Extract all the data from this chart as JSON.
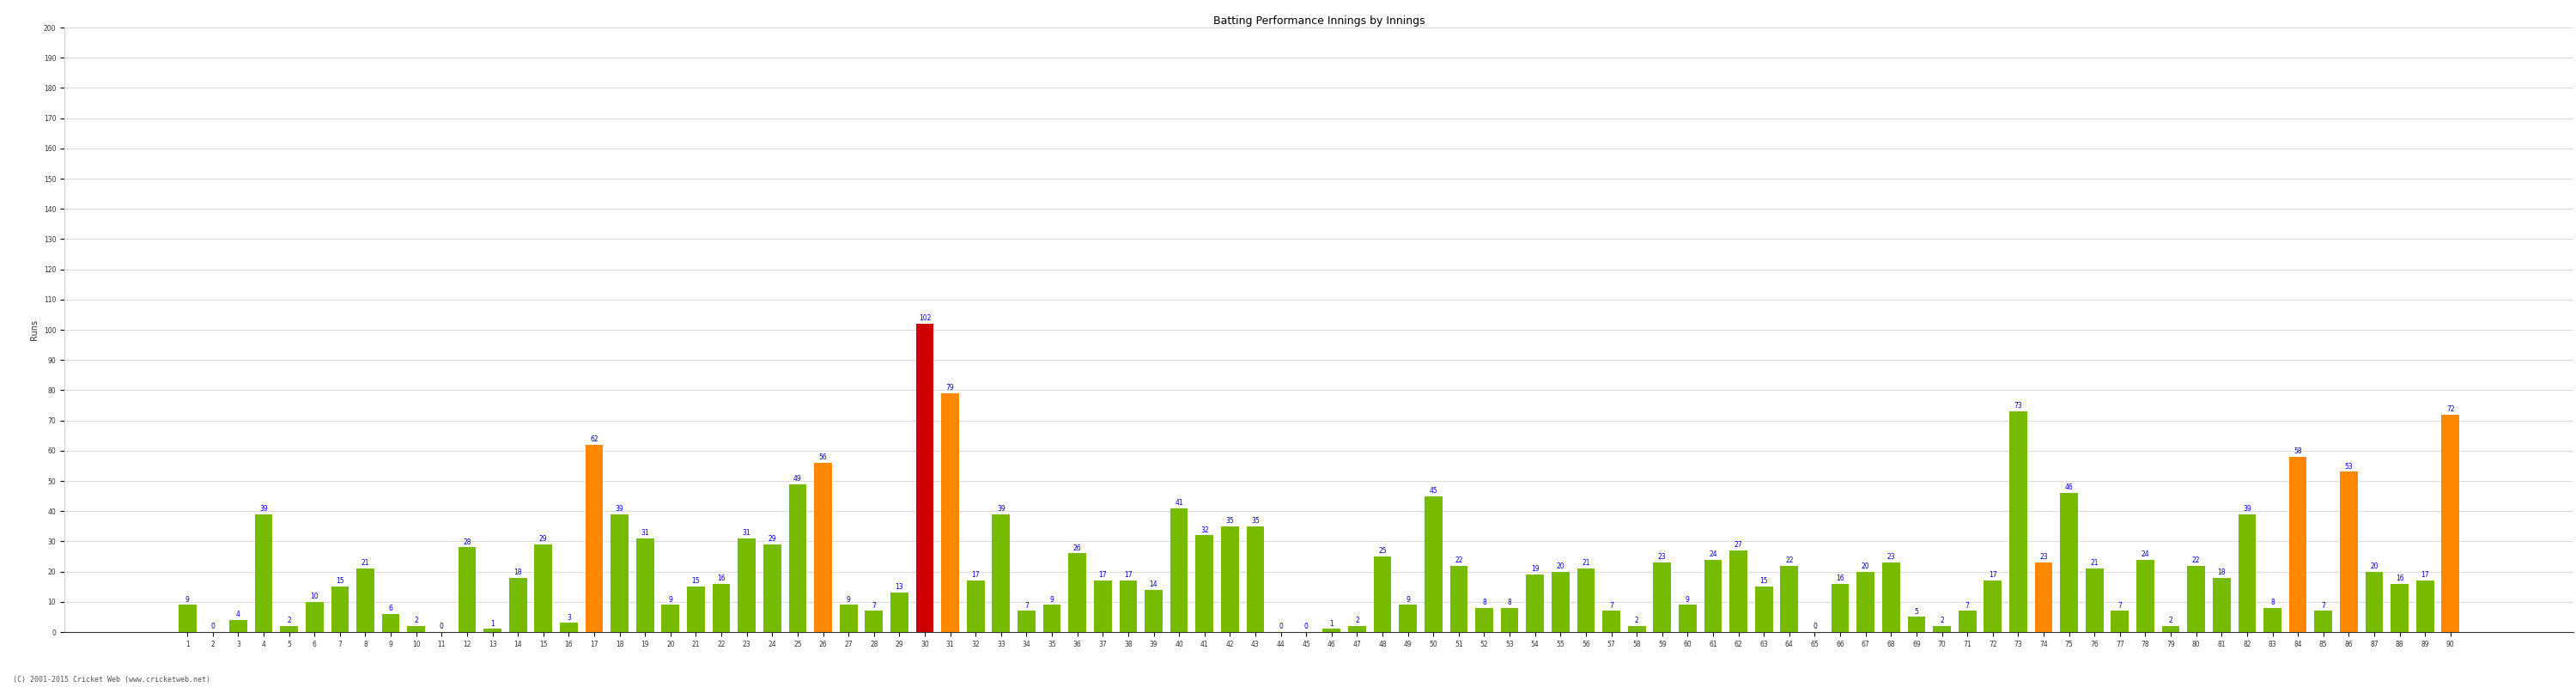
{
  "innings": [
    1,
    2,
    3,
    4,
    5,
    6,
    7,
    8,
    9,
    10,
    11,
    12,
    13,
    14,
    15,
    16,
    17,
    18,
    19,
    20,
    21,
    22,
    23,
    24,
    25,
    26,
    27,
    28,
    29,
    30,
    31,
    32,
    33,
    34,
    35,
    36,
    37,
    38,
    39,
    40,
    41,
    42,
    43,
    44,
    45,
    46,
    47,
    48,
    49,
    50,
    51,
    52,
    53,
    54,
    55,
    56,
    57,
    58,
    59,
    60,
    61,
    62,
    63,
    64,
    65,
    66,
    67,
    68,
    69,
    70,
    71,
    72,
    73,
    74,
    75,
    76,
    77,
    78,
    79,
    80,
    81,
    82,
    83,
    84,
    85,
    86,
    87,
    88,
    89,
    90
  ],
  "runs": [
    9,
    0,
    4,
    39,
    2,
    10,
    15,
    21,
    6,
    2,
    0,
    28,
    1,
    18,
    29,
    3,
    62,
    39,
    31,
    9,
    15,
    16,
    31,
    29,
    49,
    56,
    9,
    7,
    13,
    102,
    79,
    17,
    39,
    7,
    9,
    26,
    17,
    17,
    14,
    41,
    32,
    35,
    35,
    0,
    0,
    1,
    2,
    25,
    9,
    45,
    22,
    8,
    8,
    19,
    20,
    21,
    7,
    2,
    23,
    9,
    24,
    27,
    15,
    22,
    0,
    16,
    20,
    23,
    5,
    2,
    7,
    17,
    73,
    23,
    46,
    21,
    7,
    24,
    2,
    22,
    18,
    39,
    8,
    58,
    7,
    53,
    20,
    16,
    17,
    72
  ],
  "colors": [
    "#77bb00",
    "#77bb00",
    "#77bb00",
    "#77bb00",
    "#77bb00",
    "#77bb00",
    "#77bb00",
    "#77bb00",
    "#77bb00",
    "#77bb00",
    "#77bb00",
    "#77bb00",
    "#77bb00",
    "#77bb00",
    "#77bb00",
    "#77bb00",
    "#ff8800",
    "#77bb00",
    "#77bb00",
    "#77bb00",
    "#77bb00",
    "#77bb00",
    "#77bb00",
    "#77bb00",
    "#77bb00",
    "#ff8800",
    "#77bb00",
    "#77bb00",
    "#77bb00",
    "#cc0000",
    "#ff8800",
    "#77bb00",
    "#77bb00",
    "#77bb00",
    "#77bb00",
    "#77bb00",
    "#77bb00",
    "#77bb00",
    "#77bb00",
    "#77bb00",
    "#77bb00",
    "#77bb00",
    "#77bb00",
    "#77bb00",
    "#77bb00",
    "#77bb00",
    "#77bb00",
    "#77bb00",
    "#77bb00",
    "#77bb00",
    "#77bb00",
    "#77bb00",
    "#77bb00",
    "#77bb00",
    "#77bb00",
    "#77bb00",
    "#77bb00",
    "#77bb00",
    "#77bb00",
    "#77bb00",
    "#77bb00",
    "#77bb00",
    "#77bb00",
    "#77bb00",
    "#77bb00",
    "#77bb00",
    "#77bb00",
    "#77bb00",
    "#77bb00",
    "#77bb00",
    "#77bb00",
    "#77bb00",
    "#77bb00",
    "#ff8800",
    "#77bb00",
    "#77bb00",
    "#77bb00",
    "#77bb00",
    "#77bb00",
    "#77bb00",
    "#77bb00",
    "#77bb00",
    "#77bb00",
    "#ff8800",
    "#77bb00",
    "#ff8800",
    "#77bb00",
    "#77bb00",
    "#77bb00",
    "#ff8800"
  ],
  "title": "Batting Performance Innings by Innings",
  "ylabel": "Runs",
  "ylim": [
    0,
    200
  ],
  "yticks": [
    0,
    10,
    20,
    30,
    40,
    50,
    60,
    70,
    80,
    90,
    100,
    110,
    120,
    130,
    140,
    150,
    160,
    170,
    180,
    190,
    200
  ],
  "bg_color": "#ffffff",
  "grid_color": "#cccccc",
  "bar_label_color": "#0000cc",
  "bar_label_fontsize": 5.5,
  "tick_fontsize": 5.5,
  "ylabel_fontsize": 7,
  "title_fontsize": 9,
  "footer": "(C) 2001-2015 Cricket Web (www.cricketweb.net)",
  "footer_fontsize": 6
}
